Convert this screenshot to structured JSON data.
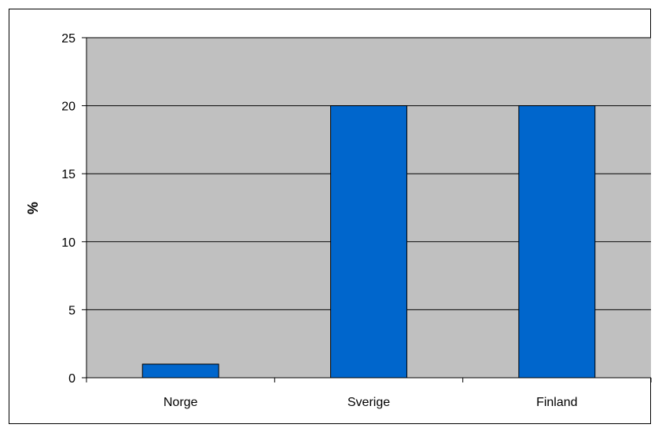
{
  "chart_data": {
    "type": "bar",
    "title": "",
    "xlabel": "",
    "ylabel": "%",
    "categories": [
      "Norge",
      "Sverige",
      "Finland"
    ],
    "values": [
      1,
      20,
      20
    ],
    "ylim": [
      0,
      25
    ],
    "yticks": [
      0,
      5,
      10,
      15,
      20,
      25
    ],
    "grid": true,
    "legend": "none",
    "colors": {
      "bar": "#0066CC",
      "plot_background": "#C0C0C0",
      "gridline": "#000000"
    }
  }
}
